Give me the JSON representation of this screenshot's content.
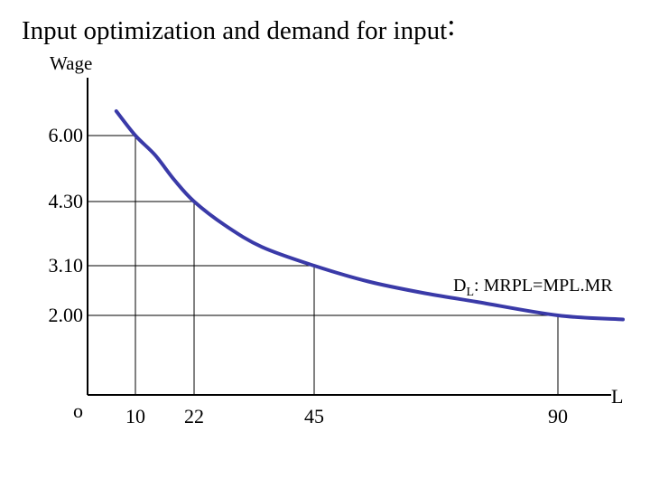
{
  "title": "Input optimization and demand for input",
  "title_colon": ":",
  "chart_data": {
    "type": "line",
    "title": "Input optimization and demand for input:",
    "ylabel": "Wage",
    "xlabel": "L",
    "origin_label": "o",
    "x_ticks": [
      10,
      22,
      45,
      90
    ],
    "x_tick_labels": [
      "10",
      "22",
      "45",
      "90"
    ],
    "y_ticks": [
      6.0,
      4.3,
      3.1,
      2.0
    ],
    "y_tick_labels": [
      "6.00",
      "4.30",
      "3.10",
      "2.00"
    ],
    "reference_points": [
      {
        "x": 10,
        "y": 6.0
      },
      {
        "x": 22,
        "y": 4.3
      },
      {
        "x": 45,
        "y": 3.1
      },
      {
        "x": 90,
        "y": 2.0
      }
    ],
    "series": [
      {
        "name": "DL: MRPL=MPL.MR",
        "label_main": "D",
        "label_sub": "L",
        "label_rest": ": MRPL=MPL.MR",
        "color": "#3a3aa8",
        "x": [
          6,
          10,
          14,
          18,
          22,
          28,
          35,
          45,
          55,
          65,
          75,
          90,
          102
        ],
        "y": [
          6.45,
          6.0,
          5.5,
          4.85,
          4.3,
          3.85,
          3.45,
          3.1,
          2.75,
          2.5,
          2.3,
          2.0,
          1.8
        ]
      }
    ],
    "grid": false,
    "legend": "none"
  }
}
